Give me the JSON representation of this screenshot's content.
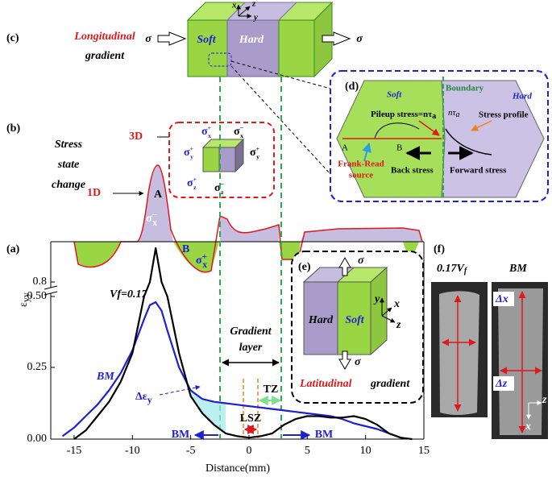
{
  "chart_data": {
    "type": "line",
    "xlabel": "Distance(mm)",
    "ylabel": {
      "symbol": "ε",
      "sub": "yy"
    },
    "x": [
      -16,
      -15,
      -14,
      -13,
      -12,
      -11,
      -10,
      -9,
      -8.5,
      -8,
      -7.5,
      -7,
      -6,
      -5,
      -4,
      -3,
      -2,
      -1,
      0,
      1,
      2,
      3,
      4,
      5,
      6,
      7,
      8,
      9,
      10,
      11,
      12,
      13,
      14
    ],
    "series": [
      {
        "name": "BM",
        "color": "#1f1fd6",
        "values": [
          0.01,
          0.04,
          0.08,
          0.12,
          0.17,
          0.23,
          0.31,
          0.42,
          0.47,
          0.48,
          0.45,
          0.38,
          0.25,
          0.17,
          0.14,
          0.13,
          0.125,
          0.12,
          0.115,
          0.11,
          0.105,
          0.1,
          0.095,
          0.09,
          0.085,
          0.08,
          0.07,
          0.055,
          0.045,
          0.035,
          0.02,
          0.005,
          null
        ]
      },
      {
        "name": "Vf=0.17",
        "color": "#000000",
        "values": [
          null,
          0,
          0.03,
          0.08,
          0.13,
          0.2,
          0.3,
          0.5,
          0.8,
          0.9,
          0.8,
          0.5,
          0.3,
          0.15,
          0.09,
          0.05,
          0.02,
          0.01,
          0.005,
          0.01,
          0.02,
          0.05,
          0.07,
          0.08,
          0.08,
          0.075,
          0.075,
          0.08,
          0.07,
          0.05,
          0.02,
          0.005,
          0
        ]
      }
    ],
    "xlim": [
      -17,
      15
    ],
    "ylim": [
      0,
      0.95
    ],
    "xticks": [
      -15,
      -10,
      -5,
      0,
      5,
      10,
      15
    ],
    "yticks": [
      {
        "value": 0,
        "label": "0.00"
      },
      0.25,
      {
        "value": 0.5,
        "label": "0.50"
      },
      0.8
    ],
    "annotations": {
      "gradient_layer": [
        "Gradient",
        "layer"
      ],
      "tz": "TZ",
      "lsz": "LSZ",
      "bm_left": "BM",
      "bm_right": "BM",
      "delta_eps": {
        "symbol": "Δε",
        "sub": "y"
      }
    }
  },
  "panel_labels": [
    "(a)",
    "(b)",
    "(c)",
    "(d)",
    "(e)",
    "(f)"
  ],
  "panel_c": {
    "title": [
      "Longitudinal",
      "gradient"
    ],
    "soft": "Soft",
    "hard": "Hard",
    "load": "σ",
    "axes": [
      "x",
      "z",
      "y"
    ]
  },
  "panel_b": {
    "title": [
      "Stress",
      "state",
      "change"
    ],
    "state_3d": "3D",
    "state_1d": "1D",
    "point_a": "A",
    "point_b": "B",
    "profile_peak": {
      "s": "σ",
      "sub": "x",
      "sup": "−"
    },
    "profile_b": {
      "s": "σ",
      "sub": "x",
      "sup": "+"
    },
    "cube": [
      {
        "s": "σ",
        "sub": "x",
        "sup": "+"
      },
      {
        "s": "σ",
        "sub": "x",
        "sup": "−"
      },
      {
        "s": "σ",
        "sub": "y",
        "sup": "+"
      },
      {
        "s": "σ",
        "sub": "y",
        "sup": "+"
      },
      {
        "s": "σ",
        "sub": "z",
        "sup": "+"
      },
      {
        "s": "σ",
        "sub": "z",
        "sup": "−"
      }
    ]
  },
  "panel_d": {
    "soft": "Soft",
    "boundary": "Boundary",
    "hard": "Hard",
    "pileup": {
      "text": "Pileup stress=nτ",
      "sub": "a"
    },
    "ntau": {
      "text": "nτ",
      "sub": "a"
    },
    "stress_profile": "Stress profile",
    "a": "A",
    "b": "B",
    "frank_read": [
      "Frank-Read",
      "source"
    ],
    "back_stress": "Back stress",
    "forward_stress": "Forward stress"
  },
  "panel_e": {
    "hard": "Hard",
    "soft": "Soft",
    "load": "σ",
    "axes": [
      "y",
      "x",
      "z"
    ],
    "title": [
      "Latitudinal",
      "gradient"
    ]
  },
  "panel_f": {
    "sample_1": {
      "text": "0.17V",
      "sub": "f"
    },
    "sample_2": "BM",
    "dx": "Δx",
    "dz": "Δz",
    "axes": [
      "z",
      "x"
    ]
  }
}
